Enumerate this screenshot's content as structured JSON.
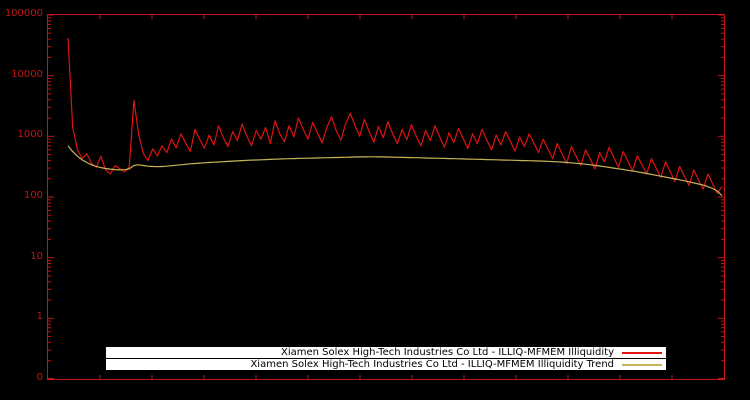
{
  "figure": {
    "background": "#000000",
    "axis_color": "#c41414",
    "tick_label_color": "#c41414",
    "legend_background": "#ffffff",
    "legend_text_color": "#000000"
  },
  "chart_data": {
    "type": "line",
    "title": "",
    "xlabel": "",
    "ylabel": "",
    "yscale": "log",
    "ylim": [
      0.1,
      100000
    ],
    "grid": false,
    "legend_position": "bottom-center",
    "ytick_labels": [
      "100000",
      "10000",
      "1000",
      "100",
      "10",
      "1",
      "0"
    ],
    "series": [
      {
        "name": "Xiamen Solex High-Tech Industries Co Ltd - ILLIQ-MFMEM Illiquidity",
        "color": "#e01212",
        "values": [
          42000,
          1400,
          600,
          430,
          520,
          360,
          310,
          470,
          280,
          240,
          330,
          290,
          260,
          310,
          3900,
          1100,
          520,
          400,
          620,
          480,
          700,
          540,
          900,
          650,
          1100,
          780,
          560,
          1300,
          890,
          640,
          1050,
          720,
          1500,
          950,
          680,
          1200,
          850,
          1600,
          1000,
          700,
          1250,
          900,
          1400,
          760,
          1800,
          1100,
          820,
          1500,
          980,
          2000,
          1300,
          900,
          1700,
          1150,
          780,
          1400,
          2100,
          1250,
          860,
          1600,
          2400,
          1500,
          1000,
          1900,
          1200,
          800,
          1450,
          950,
          1750,
          1100,
          760,
          1300,
          880,
          1550,
          1000,
          700,
          1250,
          850,
          1500,
          980,
          660,
          1150,
          790,
          1350,
          920,
          630,
          1100,
          760,
          1300,
          880,
          600,
          1050,
          720,
          1200,
          830,
          570,
          980,
          680,
          1100,
          780,
          540,
          900,
          620,
          430,
          760,
          520,
          360,
          680,
          470,
          330,
          600,
          420,
          290,
          540,
          380,
          660,
          450,
          310,
          560,
          390,
          270,
          480,
          340,
          240,
          430,
          300,
          210,
          380,
          260,
          180,
          320,
          220,
          155,
          280,
          190,
          135,
          240,
          165,
          115,
          150
        ]
      },
      {
        "name": "Xiamen Solex High-Tech Industries Co Ltd - ILLIQ-MFMEM Illiquidity Trend",
        "color": "#c8b458",
        "values": [
          700,
          560,
          470,
          410,
          370,
          340,
          320,
          305,
          295,
          288,
          283,
          280,
          282,
          290,
          330,
          340,
          330,
          322,
          318,
          316,
          318,
          322,
          328,
          334,
          340,
          346,
          352,
          357,
          362,
          366,
          370,
          374,
          378,
          382,
          386,
          390,
          394,
          398,
          402,
          405,
          408,
          411,
          414,
          417,
          420,
          423,
          426,
          428,
          430,
          432,
          434,
          436,
          438,
          440,
          442,
          444,
          446,
          448,
          450,
          452,
          454,
          456,
          458,
          459,
          460,
          460,
          459,
          458,
          456,
          454,
          452,
          450,
          448,
          446,
          444,
          442,
          440,
          438,
          436,
          434,
          432,
          430,
          428,
          426,
          424,
          422,
          420,
          418,
          416,
          414,
          412,
          410,
          408,
          406,
          404,
          402,
          400,
          398,
          396,
          394,
          392,
          390,
          387,
          384,
          380,
          376,
          371,
          366,
          360,
          354,
          347,
          340,
          332,
          324,
          316,
          308,
          300,
          292,
          284,
          276,
          268,
          260,
          252,
          244,
          236,
          228,
          220,
          213,
          206,
          199,
          192,
          185,
          178,
          171,
          164,
          157,
          148,
          138,
          125,
          105
        ]
      }
    ]
  }
}
